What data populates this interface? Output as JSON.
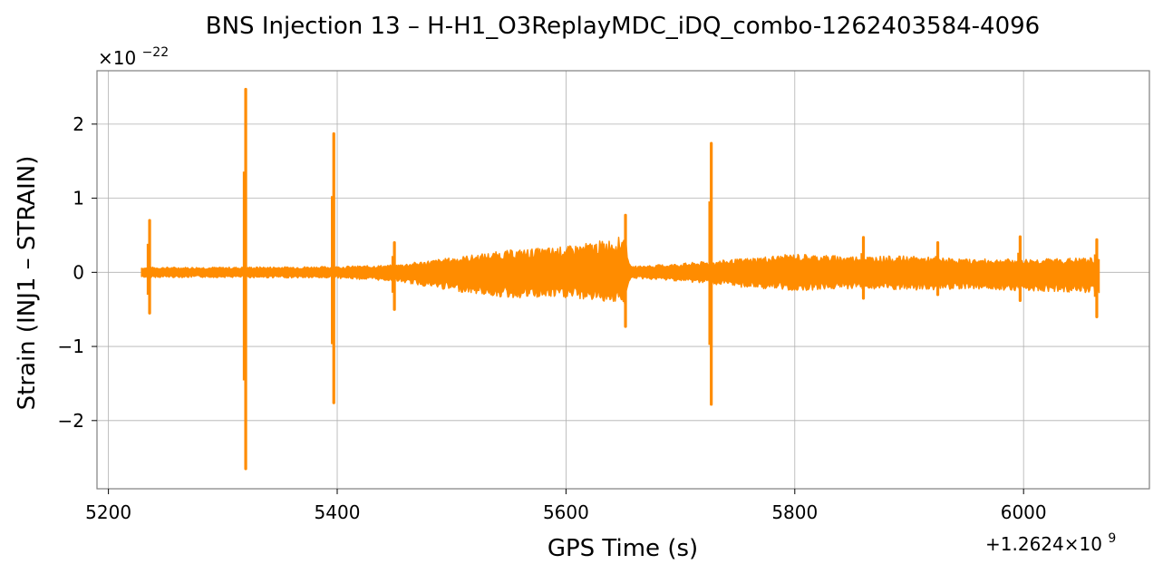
{
  "chart_data": {
    "type": "line",
    "title": "BNS Injection 13 – H-H1_O3ReplayMDC_iDQ_combo-1262403584-4096",
    "xlabel": "GPS Time (s)",
    "ylabel": "Strain (INJ1 – STRAIN)",
    "x_offset_label": "+1.2624×10",
    "x_offset_exp": "9",
    "y_multiplier_label": "×10",
    "y_multiplier_exp": "−22",
    "xlim": [
      5190,
      6110
    ],
    "ylim": [
      -2.92,
      2.72
    ],
    "xticks": [
      5200,
      5400,
      5600,
      5800,
      6000
    ],
    "xtick_labels": [
      "5200",
      "5400",
      "5600",
      "5800",
      "6000"
    ],
    "yticks": [
      -2,
      -1,
      0,
      1,
      2
    ],
    "ytick_labels": [
      "−2",
      "−1",
      "0",
      "1",
      "2"
    ],
    "grid": true,
    "color": "#ff8c00",
    "series": [
      {
        "x_range": [
          5229,
          6066
        ],
        "envelope": {
          "x": [
            5229,
            5300,
            5400,
            5450,
            5500,
            5550,
            5600,
            5640,
            5652,
            5656,
            5700,
            5750,
            5800,
            5850,
            5900,
            5950,
            6000,
            6066
          ],
          "upper": [
            0.07,
            0.07,
            0.08,
            0.1,
            0.2,
            0.3,
            0.35,
            0.45,
            0.5,
            0.08,
            0.12,
            0.18,
            0.25,
            0.22,
            0.22,
            0.18,
            0.18,
            0.2
          ],
          "lower": [
            -0.07,
            -0.07,
            -0.08,
            -0.12,
            -0.25,
            -0.35,
            -0.35,
            -0.4,
            -0.45,
            -0.08,
            -0.12,
            -0.2,
            -0.25,
            -0.22,
            -0.25,
            -0.22,
            -0.25,
            -0.28
          ]
        },
        "glitches": [
          {
            "x": 5236,
            "max": 0.7,
            "min": -0.55
          },
          {
            "x": 5320,
            "max": 2.47,
            "min": -2.65
          },
          {
            "x": 5397,
            "max": 1.87,
            "min": -1.76
          },
          {
            "x": 5450,
            "max": 0.4,
            "min": -0.5
          },
          {
            "x": 5652,
            "max": 0.77,
            "min": -0.73
          },
          {
            "x": 5727,
            "max": 1.74,
            "min": -1.78
          },
          {
            "x": 5860,
            "max": 0.47,
            "min": -0.35
          },
          {
            "x": 5925,
            "max": 0.4,
            "min": -0.3
          },
          {
            "x": 5997,
            "max": 0.48,
            "min": -0.38
          },
          {
            "x": 6064,
            "max": 0.44,
            "min": -0.6
          }
        ]
      }
    ]
  }
}
